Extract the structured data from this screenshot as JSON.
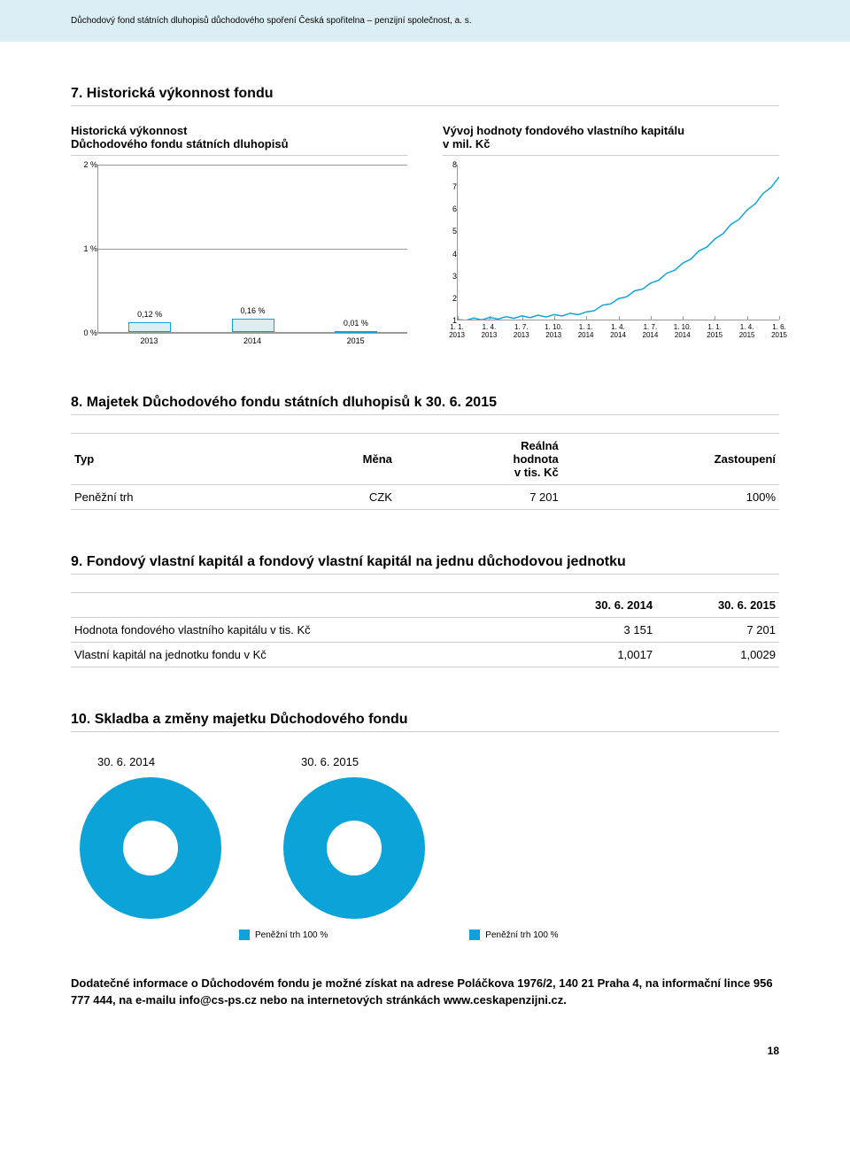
{
  "header": "Důchodový fond státních dluhopisů důchodového spoření Česká spořitelna – penzijní společnost, a. s.",
  "section7": {
    "title": "7. Historická výkonnost fondu",
    "bar_chart": {
      "title": "Historická výkonnost\nDůchodového fondu státních dluhopisů",
      "type": "bar",
      "y_ticks": [
        "0 %",
        "1 %",
        "2 %"
      ],
      "ylim": [
        0,
        2
      ],
      "categories": [
        "2013",
        "2014",
        "2015"
      ],
      "values": [
        0.12,
        0.16,
        0.01
      ],
      "value_labels": [
        "0,12 %",
        "0,16 %",
        "0,01 %"
      ],
      "bar_fill": "#dbeef5",
      "bar_stroke": "#0ca3d8",
      "grid_color": "#999999",
      "label_fontsize": 9
    },
    "line_chart": {
      "title": "Vývoj hodnoty fondového vlastního kapitálu\nv mil. Kč",
      "type": "line",
      "ylim": [
        1,
        8
      ],
      "y_ticks": [
        "1",
        "2",
        "3",
        "4",
        "5",
        "6",
        "7",
        "8"
      ],
      "x_labels": [
        "1. 1.\n2013",
        "1. 4.\n2013",
        "1. 7.\n2013",
        "1. 10.\n2013",
        "1. 1.\n2014",
        "1. 4.\n2014",
        "1. 7.\n2014",
        "1. 10.\n2014",
        "1. 1.\n2015",
        "1. 4.\n2015",
        "1. 6.\n2015"
      ],
      "points": [
        [
          0,
          1.0
        ],
        [
          1,
          1.05
        ],
        [
          2,
          1.12
        ],
        [
          3,
          1.18
        ],
        [
          4,
          1.3
        ],
        [
          5,
          1.9
        ],
        [
          6,
          2.6
        ],
        [
          7,
          3.5
        ],
        [
          8,
          4.6
        ],
        [
          9,
          5.9
        ],
        [
          10,
          7.4
        ]
      ],
      "line_color": "#0ca3d8",
      "grid_color": "#999999",
      "label_fontsize": 8
    }
  },
  "section8": {
    "title": "8. Majetek Důchodového fondu státních dluhopisů k 30. 6. 2015",
    "headers": [
      "Typ",
      "Měna",
      "Reálná\nhodnota\nv tis. Kč",
      "Zastoupení"
    ],
    "row": [
      "Peněžní trh",
      "CZK",
      "7 201",
      "100%"
    ]
  },
  "section9": {
    "title": "9. Fondový vlastní kapitál a fondový vlastní kapitál na jednu důchodovou jednotku",
    "col_headers": [
      "",
      "30. 6. 2014",
      "30. 6. 2015"
    ],
    "rows": [
      [
        "Hodnota fondového vlastního kapitálu v tis. Kč",
        "3 151",
        "7 201"
      ],
      [
        "Vlastní kapitál na jednotku fondu v Kč",
        "1,0017",
        "1,0029"
      ]
    ]
  },
  "section10": {
    "title": "10. Skladba a změny majetku Důchodového fondu",
    "pie1_title": "30. 6. 2014",
    "pie2_title": "30. 6. 2015",
    "slices": [
      {
        "label": "Peněžní trh 100 %",
        "value": 100,
        "color": "#0ca3d8"
      }
    ],
    "legend1": "Peněžní trh 100 %",
    "legend2": "Peněžní trh 100 %",
    "donut_color": "#0ca3d8"
  },
  "footer": "Dodatečné informace o Důchodovém fondu je možné získat na adrese Poláčkova 1976/2, 140 21 Praha 4, na informační lince 956 777 444, na e-mailu info@cs-ps.cz nebo na internetových stránkách www.ceskapenzijni.cz.",
  "page_number": "18"
}
